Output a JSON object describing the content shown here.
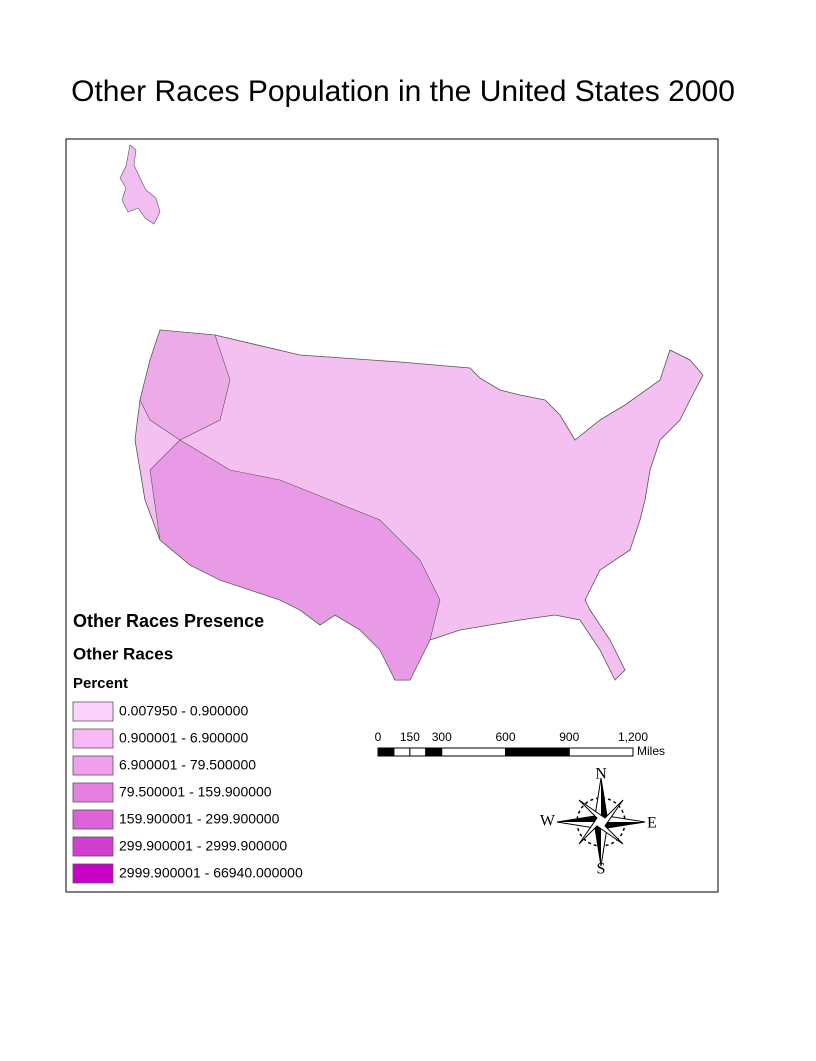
{
  "title": "Other Races Population in the United States 2000",
  "legend": {
    "title": "Other Races Presence",
    "layer": "Other Races",
    "field": "Percent",
    "classes": [
      {
        "label": "0.007950 - 0.900000",
        "color": "#fcd3fc"
      },
      {
        "label": "0.900001 - 6.900000",
        "color": "#f8b8f6"
      },
      {
        "label": "6.900001 - 79.500000",
        "color": "#f09fee"
      },
      {
        "label": "79.500001 - 159.900000",
        "color": "#e681e3"
      },
      {
        "label": "159.900001 - 299.900000",
        "color": "#dc62da"
      },
      {
        "label": "299.900001 - 2999.900000",
        "color": "#d13fd0"
      },
      {
        "label": "2999.900001 - 66940.000000",
        "color": "#c800c8"
      }
    ]
  },
  "scale_bar": {
    "ticks": [
      0,
      150,
      300,
      600,
      900,
      {
        "value": 1200,
        "label": "1,200"
      }
    ],
    "max": 1200,
    "unit": "Miles"
  },
  "north_arrow": {
    "n": "N",
    "e": "E",
    "s": "S",
    "w": "W"
  }
}
